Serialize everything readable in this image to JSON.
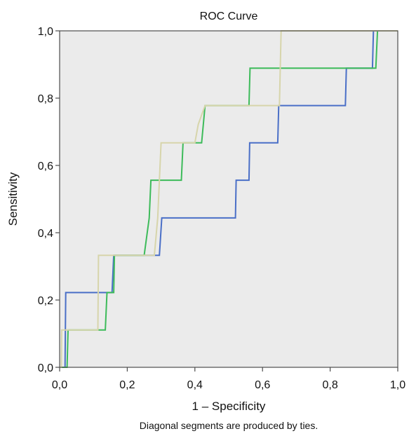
{
  "chart_data": {
    "type": "line",
    "title": "ROC Curve",
    "xlabel": "1 – Specificity",
    "ylabel": "Sensitivity",
    "footnote": "Diagonal segments are produced by ties.",
    "xlim": [
      0,
      1
    ],
    "ylim": [
      0,
      1
    ],
    "x_ticks": [
      "0,0",
      "0,2",
      "0,4",
      "0,6",
      "0,8",
      "1,0"
    ],
    "y_ticks": [
      "0,0",
      "0,2",
      "0,4",
      "0,6",
      "0,8",
      "1,0"
    ],
    "grid": false,
    "colors": {
      "plot_background": "#ebebeb",
      "frame": "#4d4d4d"
    },
    "series": [
      {
        "color": "#4a6fc7",
        "x": [
          0,
          0.016,
          0.018,
          0.155,
          0.16,
          0.295,
          0.302,
          0.52,
          0.522,
          0.56,
          0.562,
          0.645,
          0.648,
          0.845,
          0.848,
          0.925,
          0.928,
          1
        ],
        "y": [
          0,
          0,
          0.222,
          0.222,
          0.333,
          0.333,
          0.444,
          0.444,
          0.556,
          0.556,
          0.667,
          0.667,
          0.778,
          0.778,
          0.889,
          0.889,
          1,
          1
        ]
      },
      {
        "color": "#3dbb5a",
        "x": [
          0,
          0.022,
          0.025,
          0.135,
          0.14,
          0.16,
          0.162,
          0.25,
          0.265,
          0.27,
          0.36,
          0.365,
          0.42,
          0.43,
          0.56,
          0.563,
          0.935,
          0.94,
          1
        ],
        "y": [
          0,
          0,
          0.111,
          0.111,
          0.222,
          0.222,
          0.333,
          0.333,
          0.444,
          0.556,
          0.556,
          0.667,
          0.667,
          0.778,
          0.778,
          0.889,
          0.889,
          1,
          1
        ]
      },
      {
        "color": "#d7d5ab",
        "x": [
          0,
          0.005,
          0.006,
          0.113,
          0.115,
          0.28,
          0.29,
          0.3,
          0.36,
          0.37,
          0.4,
          0.41,
          0.43,
          0.5,
          0.65,
          0.655,
          0.66,
          1
        ],
        "y": [
          0,
          0,
          0.111,
          0.111,
          0.333,
          0.333,
          0.444,
          0.667,
          0.667,
          0.667,
          0.667,
          0.722,
          0.778,
          0.778,
          0.778,
          1,
          1,
          1
        ]
      }
    ]
  }
}
